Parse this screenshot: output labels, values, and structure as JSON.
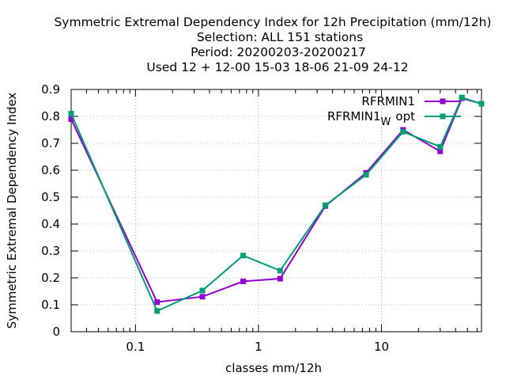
{
  "chart_data": {
    "type": "line",
    "title_lines": [
      "Symmetric Extremal Dependency Index  for 12h Precipitation (mm/12h)",
      "Selection: ALL    151 stations",
      "Period: 20200203-20200217",
      "Used  12 + 12-00 15-03 18-06 21-09 24-12"
    ],
    "xlabel": "classes mm/12h",
    "ylabel": "Symmetric Extremal Dependency Index",
    "x_scale": "log",
    "xlim": [
      0.03,
      65
    ],
    "ylim": [
      0,
      0.9
    ],
    "x_ticks": [
      {
        "value": 0.1,
        "label": "0.1"
      },
      {
        "value": 1,
        "label": "1"
      },
      {
        "value": 10,
        "label": "10"
      }
    ],
    "y_ticks": [
      {
        "value": 0,
        "label": "0"
      },
      {
        "value": 0.1,
        "label": "0.1"
      },
      {
        "value": 0.2,
        "label": "0.2"
      },
      {
        "value": 0.3,
        "label": "0.3"
      },
      {
        "value": 0.4,
        "label": "0.4"
      },
      {
        "value": 0.5,
        "label": "0.5"
      },
      {
        "value": 0.6,
        "label": "0.6"
      },
      {
        "value": 0.7,
        "label": "0.7"
      },
      {
        "value": 0.8,
        "label": "0.8"
      },
      {
        "value": 0.9,
        "label": "0.9"
      }
    ],
    "grid": true,
    "legend_position": "top-right",
    "series": [
      {
        "name": "RFRMIN1",
        "color": "#9400d3",
        "points": [
          {
            "x": 0.03,
            "y": 0.79
          },
          {
            "x": 0.15,
            "y": 0.11
          },
          {
            "x": 0.35,
            "y": 0.13
          },
          {
            "x": 0.75,
            "y": 0.187
          },
          {
            "x": 1.5,
            "y": 0.197
          },
          {
            "x": 3.5,
            "y": 0.467
          },
          {
            "x": 7.5,
            "y": 0.59
          },
          {
            "x": 15,
            "y": 0.75
          },
          {
            "x": 30,
            "y": 0.67
          },
          {
            "x": 45,
            "y": 0.867
          },
          {
            "x": 65,
            "y": 0.847
          }
        ]
      },
      {
        "name": "RFRMIN1",
        "name_subscript": "W",
        "name_suffix": "opt",
        "color": "#009e73",
        "points": [
          {
            "x": 0.03,
            "y": 0.81
          },
          {
            "x": 0.15,
            "y": 0.077
          },
          {
            "x": 0.35,
            "y": 0.153
          },
          {
            "x": 0.75,
            "y": 0.283
          },
          {
            "x": 1.5,
            "y": 0.227
          },
          {
            "x": 3.5,
            "y": 0.47
          },
          {
            "x": 7.5,
            "y": 0.583
          },
          {
            "x": 15,
            "y": 0.743
          },
          {
            "x": 30,
            "y": 0.687
          },
          {
            "x": 45,
            "y": 0.87
          },
          {
            "x": 65,
            "y": 0.847
          }
        ]
      }
    ]
  }
}
